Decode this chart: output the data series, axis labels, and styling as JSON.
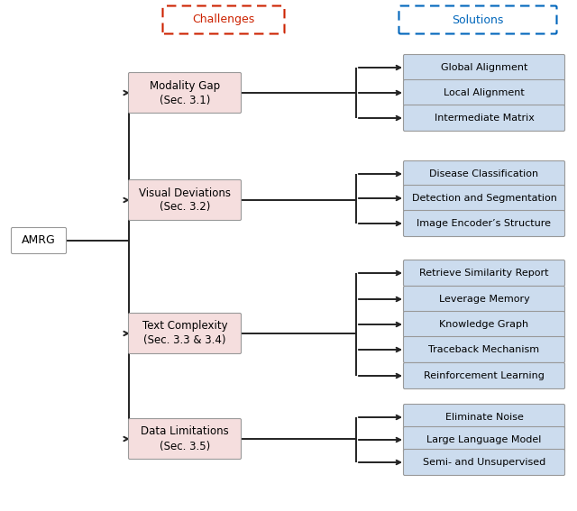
{
  "amrg_label": "AMRG",
  "challenges_label": "Challenges",
  "solutions_label": "Solutions",
  "challenges_color": "#cc2200",
  "solutions_color": "#0066bb",
  "challenge_nodes": [
    {
      "label": "Modality Gap\n(Sec. 3.1)",
      "bg": "#f5dede",
      "border": "#999999"
    },
    {
      "label": "Visual Deviations\n(Sec. 3.2)",
      "bg": "#f5dede",
      "border": "#999999"
    },
    {
      "label": "Text Complexity\n(Sec. 3.3 & 3.4)",
      "bg": "#f5dede",
      "border": "#999999"
    },
    {
      "label": "Data Limitations\n(Sec. 3.5)",
      "bg": "#f5dede",
      "border": "#999999"
    }
  ],
  "solution_nodes": [
    [
      {
        "label": "Global Alignment",
        "bg": "#ccdcee",
        "border": "#999999"
      },
      {
        "label": "Local Alignment",
        "bg": "#ccdcee",
        "border": "#999999"
      },
      {
        "label": "Intermediate Matrix",
        "bg": "#ccdcee",
        "border": "#999999"
      }
    ],
    [
      {
        "label": "Disease Classification",
        "bg": "#ccdcee",
        "border": "#999999"
      },
      {
        "label": "Detection and Segmentation",
        "bg": "#ccdcee",
        "border": "#999999"
      },
      {
        "label": "Image Encoder’s Structure",
        "bg": "#ccdcee",
        "border": "#999999"
      }
    ],
    [
      {
        "label": "Retrieve Similarity Report",
        "bg": "#ccdcee",
        "border": "#999999"
      },
      {
        "label": "Leverage Memory",
        "bg": "#ccdcee",
        "border": "#999999"
      },
      {
        "label": "Knowledge Graph",
        "bg": "#ccdcee",
        "border": "#999999"
      },
      {
        "label": "Traceback Mechanism",
        "bg": "#ccdcee",
        "border": "#999999"
      },
      {
        "label": "Reinforcement Learning",
        "bg": "#ccdcee",
        "border": "#999999"
      }
    ],
    [
      {
        "label": "Eliminate Noise",
        "bg": "#ccdcee",
        "border": "#999999"
      },
      {
        "label": "Large Language Model",
        "bg": "#ccdcee",
        "border": "#999999"
      },
      {
        "label": "Semi- and Unsupervised",
        "bg": "#ccdcee",
        "border": "#999999"
      }
    ]
  ],
  "line_color": "#222222",
  "line_width": 1.4,
  "font_size": 8.5
}
